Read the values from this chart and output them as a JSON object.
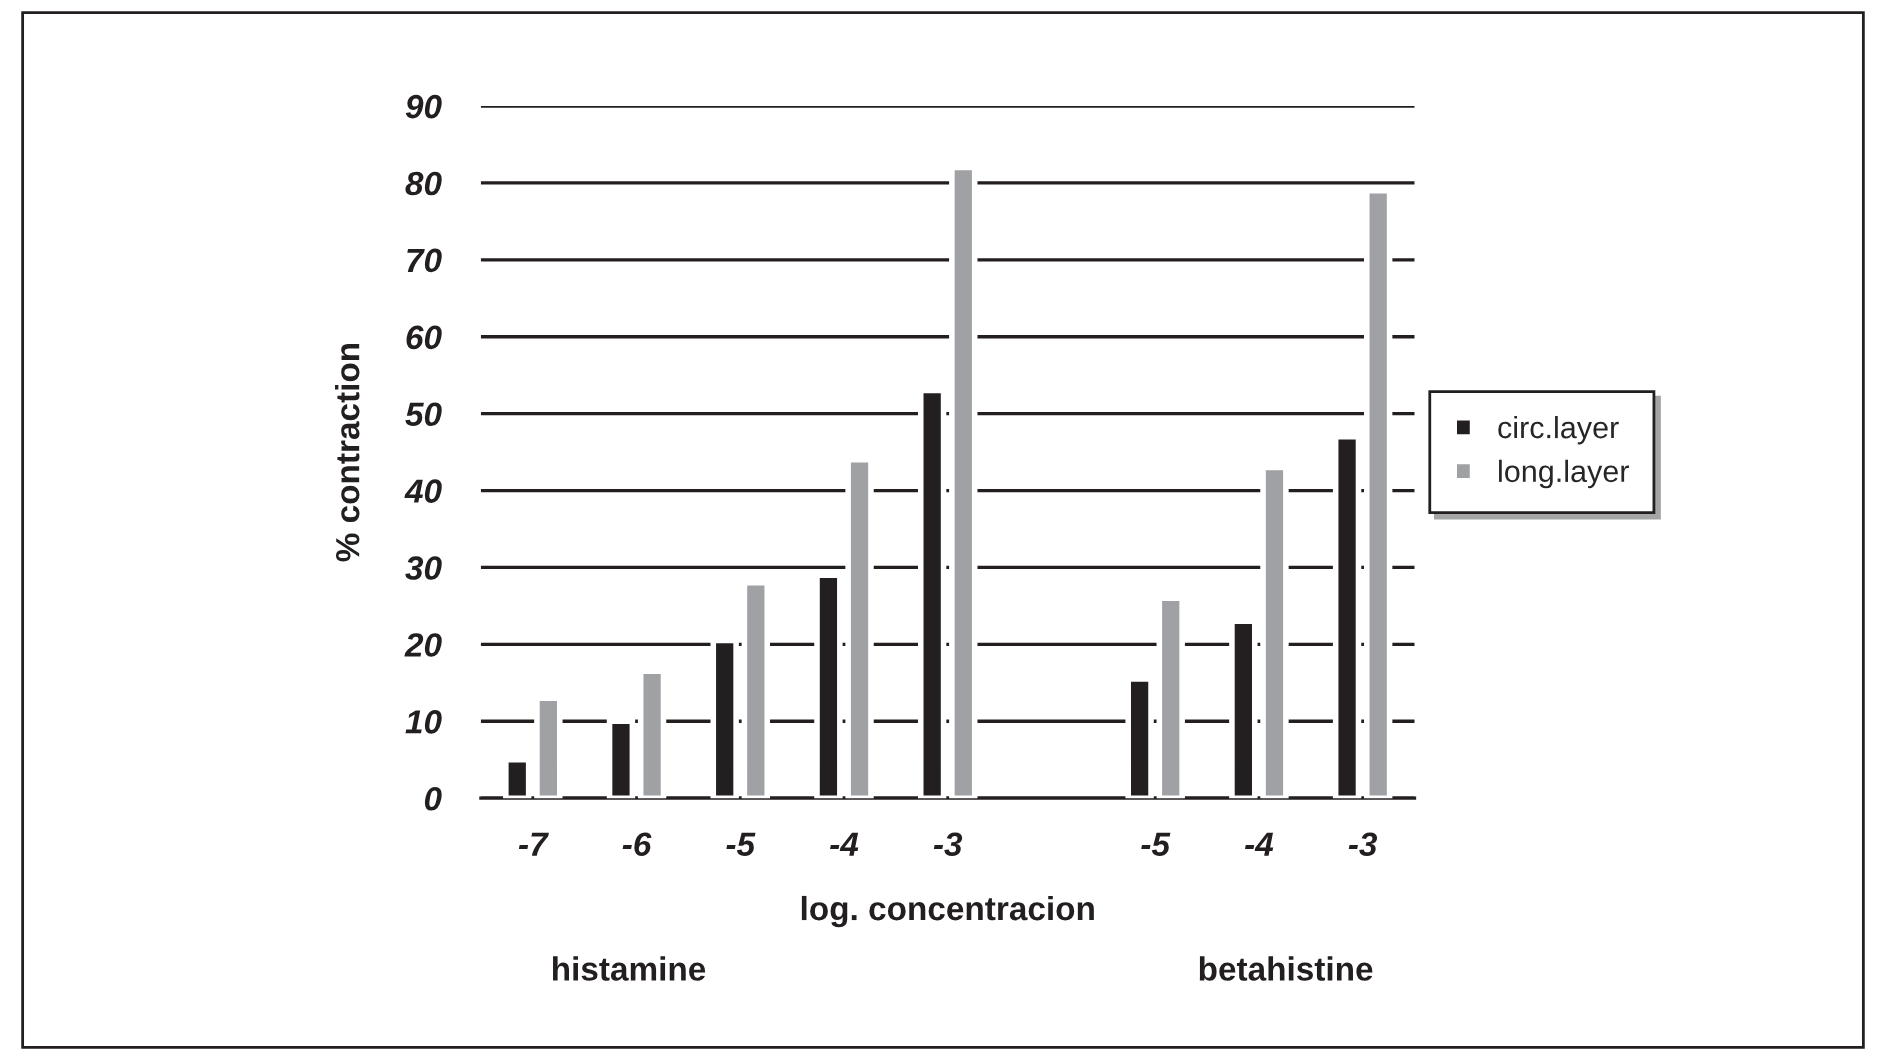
{
  "chart_data": {
    "type": "bar",
    "xlabel": "log. concentracion",
    "ylabel": "% contraction",
    "categories": [
      "-7",
      "-6",
      "-5",
      "-4",
      "-3",
      null,
      "-5",
      "-4",
      "-3"
    ],
    "series": [
      {
        "name": "circ.layer",
        "color": "#231f20",
        "values": [
          5,
          10,
          20.5,
          29,
          53,
          null,
          15.5,
          23,
          47
        ]
      },
      {
        "name": "long.layer",
        "color": "#a0a1a5",
        "values": [
          13,
          16.5,
          28,
          44,
          82,
          null,
          26,
          43,
          79
        ]
      }
    ],
    "ylim": [
      0,
      90
    ],
    "yticks": [
      0,
      10,
      20,
      30,
      40,
      50,
      60,
      70,
      80,
      90
    ],
    "grid": "y",
    "legend": "right",
    "annotations": [
      "histamine",
      "betahistine"
    ]
  }
}
